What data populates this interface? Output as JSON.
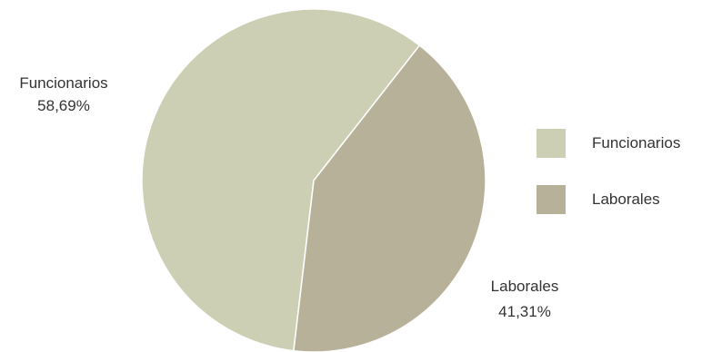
{
  "chart_data": {
    "type": "pie",
    "title": "",
    "slices": [
      {
        "label": "Funcionarios",
        "percent_label": "58,69%",
        "value": 58.69,
        "color": "#cdcfb4"
      },
      {
        "label": "Laborales",
        "percent_label": "41,31%",
        "value": 41.31,
        "color": "#b8b19a"
      }
    ],
    "legend": {
      "position": "right",
      "items": [
        "Funcionarios",
        "Laborales"
      ]
    }
  }
}
